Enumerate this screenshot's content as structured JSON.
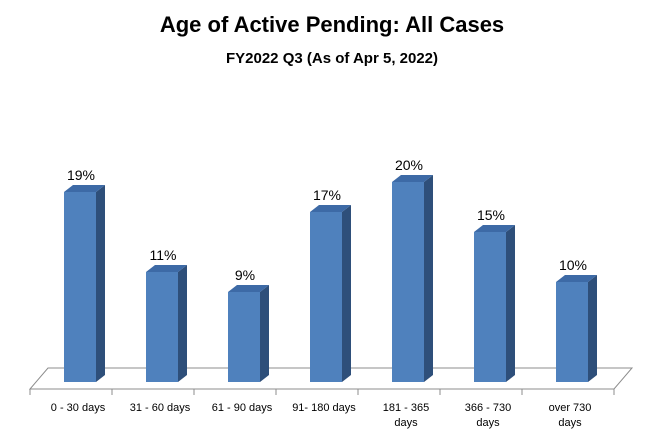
{
  "chart_data": {
    "type": "bar",
    "title": "Age of Active Pending: All Cases",
    "subtitle": "FY2022 Q3 (As of Apr 5, 2022)",
    "categories": [
      [
        "0 - 30 days"
      ],
      [
        "31 - 60 days"
      ],
      [
        "61 - 90 days"
      ],
      [
        "91- 180 days"
      ],
      [
        "181 - 365",
        "days"
      ],
      [
        "366 - 730",
        "days"
      ],
      [
        "over 730",
        "days"
      ]
    ],
    "values": [
      19,
      11,
      9,
      17,
      20,
      15,
      10
    ],
    "value_labels": [
      "19%",
      "11%",
      "9%",
      "17%",
      "20%",
      "15%",
      "10%"
    ],
    "ylim": [
      0,
      22
    ],
    "xlabel": "",
    "ylabel": "",
    "grid": false,
    "legend": "none",
    "colors": {
      "bar_front": "#4F81BD",
      "bar_side": "#2E4F7A",
      "bar_top": "#3D6AA6",
      "floor_line": "#8C8C8C"
    }
  }
}
